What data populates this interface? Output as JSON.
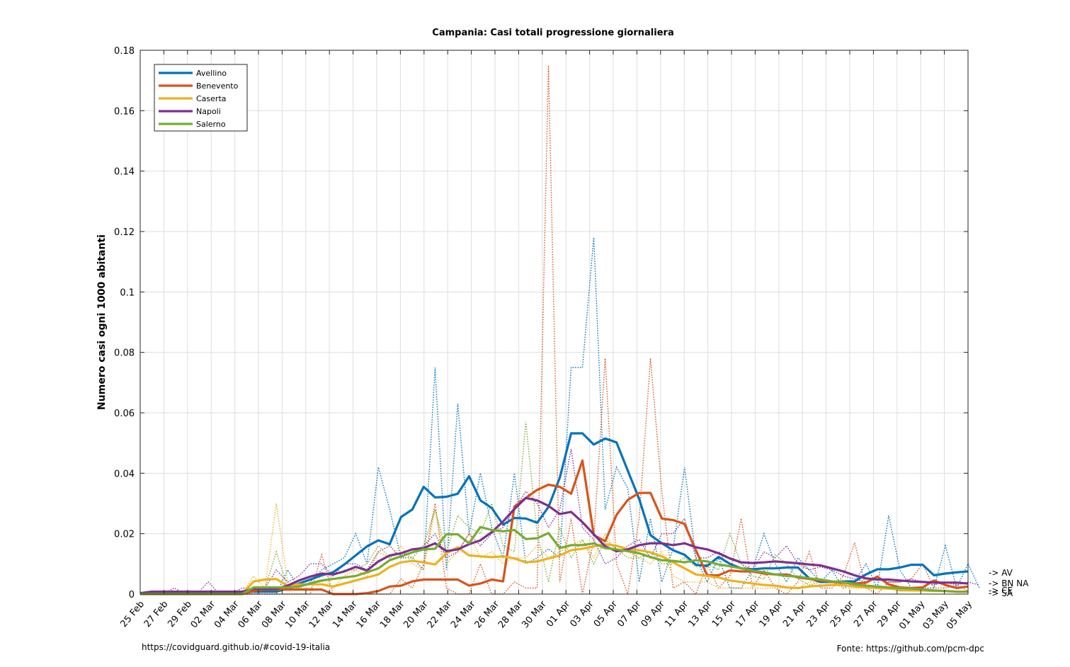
{
  "chart_data": {
    "type": "line",
    "title": "Campania: Casi totali progressione giornaliera",
    "xlabel": "",
    "ylabel": "Numero casi ogni 1000 abitanti",
    "ylim": [
      0,
      0.18
    ],
    "yticks": [
      "0",
      "0.02",
      "0.04",
      "0.06",
      "0.08",
      "0.1",
      "0.12",
      "0.14",
      "0.16",
      "0.18"
    ],
    "x_start": "25 Feb",
    "x_end": "05 May",
    "xtick_labels": [
      "25 Feb",
      "27 Feb",
      "29 Feb",
      "02 Mar",
      "04 Mar",
      "06 Mar",
      "08 Mar",
      "10 Mar",
      "12 Mar",
      "14 Mar",
      "16 Mar",
      "18 Mar",
      "20 Mar",
      "22 Mar",
      "24 Mar",
      "26 Mar",
      "28 Mar",
      "30 Mar",
      "01 Apr",
      "03 Apr",
      "05 Apr",
      "07 Apr",
      "09 Apr",
      "11 Apr",
      "13 Apr",
      "15 Apr",
      "17 Apr",
      "19 Apr",
      "21 Apr",
      "23 Apr",
      "25 Apr",
      "27 Apr",
      "29 Apr",
      "01 May",
      "03 May",
      "05 May"
    ],
    "grid": true,
    "legend_position": "top-left",
    "series": [
      {
        "name": "Avellino",
        "color": "#0072BD",
        "smoothed": [
          0.0003,
          0.0003,
          0.0003,
          0.0003,
          0.0003,
          0.0003,
          0.0003,
          0.0003,
          0.0003,
          0.0003,
          0.0008,
          0.0008,
          0.0008,
          0.0018,
          0.0035,
          0.0048,
          0.0062,
          0.0072,
          0.0098,
          0.0128,
          0.0158,
          0.0178,
          0.0165,
          0.0255,
          0.028,
          0.0355,
          0.032,
          0.0322,
          0.0332,
          0.039,
          0.031,
          0.0285,
          0.023,
          0.0252,
          0.025,
          0.0236,
          0.0288,
          0.0385,
          0.0532,
          0.0532,
          0.0495,
          0.0515,
          0.0502,
          0.0408,
          0.0315,
          0.0195,
          0.0168,
          0.0145,
          0.013,
          0.0097,
          0.0093,
          0.0123,
          0.01,
          0.0085,
          0.0082,
          0.0085,
          0.0085,
          0.0088,
          0.0088,
          0.0052,
          0.004,
          0.004,
          0.0042,
          0.0042,
          0.0065,
          0.0082,
          0.0082,
          0.0088,
          0.0097,
          0.0097,
          0.0062,
          0.0068,
          0.0072,
          0.0075
        ],
        "daily": [
          0,
          0,
          0,
          0,
          0,
          0,
          0,
          0,
          0,
          0,
          0,
          0,
          0,
          0.008,
          0.002,
          0.004,
          0.008,
          0.01,
          0.012,
          0.02,
          0.01,
          0.042,
          0.028,
          0.012,
          0.012,
          0.008,
          0.075,
          0.008,
          0.063,
          0.02,
          0.04,
          0.022,
          0.012,
          0.04,
          0.01,
          0.012,
          0.015,
          0.012,
          0.075,
          0.075,
          0.118,
          0.028,
          0.042,
          0.035,
          0.004,
          0.025,
          0.004,
          0.015,
          0.042,
          0.012,
          0.004,
          0.012,
          0.002,
          0.002,
          0.008,
          0.02,
          0.01,
          0.004,
          0.012,
          0.008,
          0.004,
          0.008,
          0.002,
          0.004,
          0.01,
          0.002,
          0.026,
          0.008,
          0.002,
          0.002,
          0.002,
          0.016,
          0.002,
          0.01,
          0.002
        ]
      },
      {
        "name": "Benevento",
        "color": "#D95319",
        "smoothed": [
          0,
          0,
          0,
          0,
          0,
          0,
          0,
          0,
          0,
          0,
          0.001,
          0.0015,
          0.0015,
          0.0015,
          0.0015,
          0.0015,
          0.0015,
          0,
          0,
          0,
          0.0003,
          0.001,
          0.0025,
          0.0028,
          0.0042,
          0.0048,
          0.0048,
          0.0048,
          0.0048,
          0.0028,
          0.0035,
          0.0048,
          0.0042,
          0.029,
          0.0318,
          0.0345,
          0.0362,
          0.0355,
          0.0332,
          0.0442,
          0.0195,
          0.0175,
          0.0262,
          0.0312,
          0.0335,
          0.0335,
          0.025,
          0.0245,
          0.0232,
          0.0145,
          0.0062,
          0.0062,
          0.0078,
          0.0075,
          0.0075,
          0.0068,
          0.0065,
          0.0065,
          0.0055,
          0.005,
          0.0045,
          0.004,
          0.0038,
          0.0035,
          0.0038,
          0.0058,
          0.0032,
          0.0022,
          0.002,
          0.0022,
          0.0045,
          0.003,
          0.002,
          0.0025
        ],
        "daily": [
          0,
          0,
          0,
          0,
          0,
          0,
          0,
          0,
          0,
          0,
          0,
          0,
          0,
          0,
          0,
          0,
          0.013,
          0,
          0,
          0,
          0,
          0,
          0,
          0.005,
          0.002,
          0.01,
          0.03,
          0.002,
          0,
          0,
          0.01,
          0,
          0,
          0.004,
          0.002,
          0.002,
          0.175,
          0.004,
          0.025,
          0,
          0.018,
          0.078,
          0.01,
          0,
          0.025,
          0.078,
          0.034,
          0.002,
          0.004,
          0,
          0.01,
          0.002,
          0.006,
          0.025,
          0.002,
          0.008,
          0.002,
          0,
          0.004,
          0.014,
          0.002,
          0.002,
          0.006,
          0.017,
          0.002,
          0,
          0.004,
          0.004,
          0.005,
          0.01,
          0.002,
          0.002,
          0.003,
          0.001
        ]
      },
      {
        "name": "Caserta",
        "color": "#EDB120",
        "smoothed": [
          0,
          0,
          0,
          0,
          0,
          0,
          0,
          0,
          0,
          0,
          0.0042,
          0.0048,
          0.005,
          0.0028,
          0.0032,
          0.0032,
          0.0032,
          0.0025,
          0.0035,
          0.0045,
          0.0055,
          0.0065,
          0.009,
          0.0105,
          0.011,
          0.0105,
          0.0098,
          0.0135,
          0.0155,
          0.0128,
          0.0125,
          0.0122,
          0.0125,
          0.0118,
          0.0105,
          0.0108,
          0.0118,
          0.0128,
          0.0145,
          0.015,
          0.0158,
          0.0165,
          0.016,
          0.0148,
          0.0145,
          0.0138,
          0.0125,
          0.0105,
          0.0085,
          0.0065,
          0.006,
          0.0055,
          0.0045,
          0.004,
          0.0035,
          0.003,
          0.0028,
          0.0022,
          0.002,
          0.0025,
          0.0028,
          0.003,
          0.003,
          0.0025,
          0.0022,
          0.002,
          0.0018,
          0.0015,
          0.0012,
          0.0012,
          0.001,
          0.001,
          0.0008,
          0.0008
        ],
        "daily": [
          0,
          0,
          0,
          0,
          0,
          0,
          0,
          0,
          0,
          0,
          0.006,
          0.002,
          0.03,
          0.004,
          0.002,
          0.002,
          0.006,
          0.002,
          0.006,
          0.008,
          0.006,
          0.014,
          0.012,
          0.016,
          0.01,
          0.008,
          0.028,
          0.01,
          0.014,
          0.02,
          0.012,
          0.014,
          0.01,
          0.012,
          0.012,
          0.016,
          0.012,
          0.014,
          0.016,
          0.018,
          0.012,
          0.02,
          0.014,
          0.014,
          0.012,
          0.01,
          0.014,
          0.006,
          0.004,
          0.004,
          0.004,
          0.002,
          0.002,
          0.002,
          0.002,
          0.002,
          0.002,
          0.002,
          0.002,
          0.004,
          0.004,
          0.004,
          0.002,
          0.002,
          0.002,
          0.002,
          0.002,
          0.001,
          0.001,
          0.001,
          0.001,
          0.001,
          0.001,
          0.001
        ]
      },
      {
        "name": "Napoli",
        "color": "#7E2F8E",
        "smoothed": [
          0.0003,
          0.0008,
          0.0008,
          0.0008,
          0.0008,
          0.0008,
          0.0008,
          0.0008,
          0.0008,
          0.0008,
          0.0017,
          0.0017,
          0.0017,
          0.0028,
          0.0045,
          0.0058,
          0.0068,
          0.0065,
          0.0075,
          0.009,
          0.0078,
          0.0108,
          0.0128,
          0.0135,
          0.0148,
          0.0152,
          0.0168,
          0.0142,
          0.0148,
          0.0165,
          0.0178,
          0.0205,
          0.024,
          0.0282,
          0.0318,
          0.031,
          0.0292,
          0.0265,
          0.0272,
          0.0238,
          0.0198,
          0.0158,
          0.0142,
          0.0148,
          0.0162,
          0.0168,
          0.0168,
          0.0162,
          0.0168,
          0.0155,
          0.0148,
          0.0135,
          0.0118,
          0.0105,
          0.0103,
          0.0105,
          0.0108,
          0.0105,
          0.0102,
          0.0098,
          0.0095,
          0.0085,
          0.0075,
          0.0062,
          0.0052,
          0.0048,
          0.0048,
          0.0045,
          0.0042,
          0.004,
          0.0038,
          0.0038,
          0.0038,
          0.0035
        ],
        "daily": [
          0,
          0.001,
          0,
          0.002,
          0,
          0,
          0.004,
          0,
          0,
          0.002,
          0.002,
          0.002,
          0.008,
          0.004,
          0.006,
          0.01,
          0.01,
          0.006,
          0.01,
          0.01,
          0.008,
          0.014,
          0.016,
          0.012,
          0.014,
          0.016,
          0.02,
          0.012,
          0.014,
          0.02,
          0.016,
          0.02,
          0.022,
          0.028,
          0.034,
          0.03,
          0.022,
          0.028,
          0.048,
          0.022,
          0.018,
          0.01,
          0.012,
          0.016,
          0.018,
          0.012,
          0.02,
          0.02,
          0.025,
          0.012,
          0.012,
          0.014,
          0.012,
          0.01,
          0.008,
          0.014,
          0.012,
          0.016,
          0.01,
          0.008,
          0.009,
          0.008,
          0.006,
          0.005,
          0.004,
          0.005,
          0.004,
          0.004,
          0.005,
          0.004,
          0.003,
          0.004,
          0.003,
          0.004,
          0.003
        ]
      },
      {
        "name": "Salerno",
        "color": "#77AC30",
        "smoothed": [
          0,
          0,
          0,
          0,
          0,
          0,
          0,
          0,
          0,
          0,
          0.0022,
          0.0022,
          0.0022,
          0.0022,
          0.0025,
          0.0035,
          0.0045,
          0.005,
          0.0055,
          0.006,
          0.0072,
          0.0085,
          0.0112,
          0.0125,
          0.0138,
          0.0148,
          0.015,
          0.0198,
          0.0198,
          0.0168,
          0.0222,
          0.0212,
          0.0208,
          0.0212,
          0.0182,
          0.0185,
          0.0202,
          0.0152,
          0.0162,
          0.0162,
          0.0168,
          0.0152,
          0.0148,
          0.0142,
          0.0135,
          0.0122,
          0.0112,
          0.011,
          0.0105,
          0.0112,
          0.0108,
          0.0098,
          0.0092,
          0.0085,
          0.0078,
          0.0072,
          0.0065,
          0.006,
          0.0058,
          0.0052,
          0.0048,
          0.0042,
          0.004,
          0.0032,
          0.0028,
          0.0025,
          0.0022,
          0.002,
          0.0018,
          0.0015,
          0.0012,
          0.001,
          0.0008,
          0.0008
        ],
        "daily": [
          0,
          0,
          0,
          0,
          0,
          0,
          0,
          0,
          0,
          0,
          0.002,
          0.002,
          0.014,
          0.002,
          0.002,
          0.004,
          0.004,
          0.006,
          0.008,
          0.008,
          0.01,
          0.016,
          0.012,
          0.014,
          0.012,
          0.016,
          0.028,
          0.014,
          0.026,
          0.022,
          0.02,
          0.03,
          0.016,
          0.014,
          0.057,
          0.02,
          0.004,
          0.022,
          0.012,
          0.018,
          0.01,
          0.018,
          0.015,
          0.012,
          0.012,
          0.014,
          0.01,
          0.01,
          0.012,
          0.009,
          0.01,
          0.008,
          0.02,
          0.01,
          0.006,
          0.005,
          0.013,
          0.01,
          0.005,
          0.003,
          0.004,
          0.004,
          0.003,
          0.003,
          0.002,
          0.002,
          0.002,
          0.001,
          0.001,
          0.001,
          0.001,
          0.001,
          0.001,
          0.001
        ]
      }
    ],
    "end_labels": [
      "-> AV",
      "-> BN NA",
      "-> CE",
      "-> SA"
    ]
  },
  "footer": {
    "left": "https://covidguard.github.io/#covid-19-italia",
    "right": "Fonte: https://github.com/pcm-dpc"
  }
}
